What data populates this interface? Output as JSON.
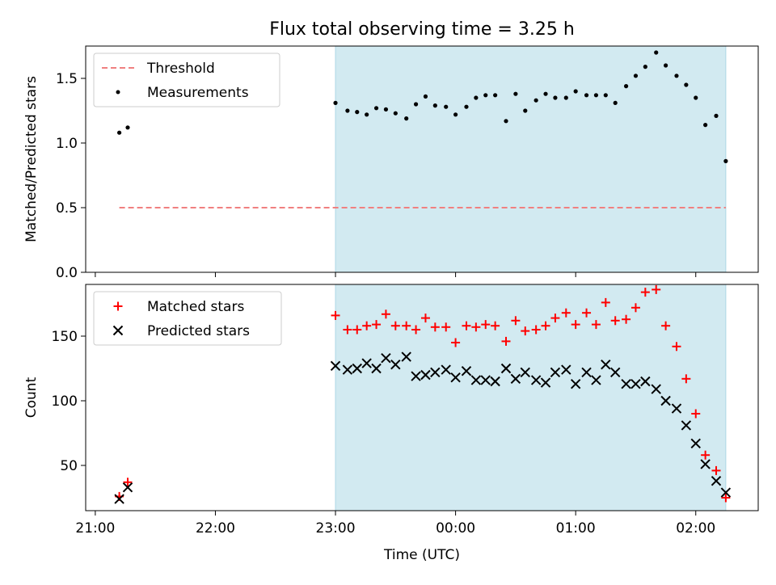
{
  "figure": {
    "title": "Flux total observing time = 3.25 h",
    "xlabel": "Time (UTC)",
    "x_tick_labels": [
      "21:00",
      "22:00",
      "23:00",
      "00:00",
      "01:00",
      "02:00"
    ]
  },
  "colors": {
    "threshold": "#f08080",
    "measurements": "#000000",
    "matched": "#ff0000",
    "predicted": "#000000",
    "shade": "#add8e6"
  },
  "chart_data": [
    {
      "type": "scatter",
      "ylabel": "Matched/Predicted stars",
      "ylim": [
        0,
        1.75
      ],
      "xlim_hours": [
        -0.08,
        5.52
      ],
      "y_tick_labels": [
        "0.0",
        "0.5",
        "1.0",
        "1.5"
      ],
      "y_ticks": [
        0,
        0.5,
        1.0,
        1.5
      ],
      "x_ticks_hours": [
        0,
        1,
        2,
        3,
        4,
        5
      ],
      "legend_position": "upper-left",
      "shaded_span_hours": [
        2.0,
        5.25
      ],
      "threshold": {
        "name": "Threshold",
        "value": 0.5,
        "x_range_hours": [
          0.2,
          5.25
        ]
      },
      "series": [
        {
          "name": "Measurements",
          "x_hours": [
            0.2,
            0.27,
            2.0,
            2.1,
            2.18,
            2.26,
            2.34,
            2.42,
            2.5,
            2.59,
            2.67,
            2.75,
            2.83,
            2.92,
            3.0,
            3.09,
            3.17,
            3.25,
            3.33,
            3.42,
            3.5,
            3.58,
            3.67,
            3.75,
            3.83,
            3.92,
            4.0,
            4.09,
            4.17,
            4.25,
            4.33,
            4.42,
            4.5,
            4.58,
            4.67,
            4.75,
            4.84,
            4.92,
            5.0,
            5.08,
            5.17,
            5.25
          ],
          "y": [
            1.08,
            1.12,
            1.31,
            1.25,
            1.24,
            1.22,
            1.27,
            1.26,
            1.23,
            1.19,
            1.3,
            1.36,
            1.29,
            1.28,
            1.22,
            1.28,
            1.35,
            1.37,
            1.37,
            1.17,
            1.38,
            1.25,
            1.33,
            1.38,
            1.35,
            1.35,
            1.4,
            1.37,
            1.37,
            1.37,
            1.31,
            1.44,
            1.52,
            1.59,
            1.7,
            1.6,
            1.52,
            1.45,
            1.35,
            1.14,
            1.21,
            0.86
          ]
        }
      ]
    },
    {
      "type": "scatter",
      "ylabel": "Count",
      "ylim": [
        15,
        190
      ],
      "xlim_hours": [
        -0.08,
        5.52
      ],
      "y_tick_labels": [
        "50",
        "100",
        "150"
      ],
      "y_ticks": [
        50,
        100,
        150
      ],
      "x_ticks_hours": [
        0,
        1,
        2,
        3,
        4,
        5
      ],
      "legend_position": "upper-left",
      "shaded_span_hours": [
        2.0,
        5.25
      ],
      "series": [
        {
          "name": "Matched stars",
          "marker": "plus",
          "x_hours": [
            0.2,
            0.27,
            2.0,
            2.1,
            2.18,
            2.26,
            2.34,
            2.42,
            2.5,
            2.59,
            2.67,
            2.75,
            2.83,
            2.92,
            3.0,
            3.09,
            3.17,
            3.25,
            3.33,
            3.42,
            3.5,
            3.58,
            3.67,
            3.75,
            3.83,
            3.92,
            4.0,
            4.09,
            4.17,
            4.25,
            4.33,
            4.42,
            4.5,
            4.58,
            4.67,
            4.75,
            4.84,
            4.92,
            5.0,
            5.08,
            5.17,
            5.25
          ],
          "y": [
            26,
            37,
            166,
            155,
            155,
            158,
            159,
            167,
            158,
            158,
            155,
            164,
            157,
            157,
            145,
            158,
            157,
            159,
            158,
            146,
            162,
            154,
            155,
            158,
            164,
            168,
            159,
            168,
            159,
            176,
            162,
            163,
            172,
            184,
            186,
            158,
            142,
            117,
            90,
            58,
            46,
            25
          ]
        },
        {
          "name": "Predicted stars",
          "marker": "x",
          "x_hours": [
            0.2,
            0.27,
            2.0,
            2.1,
            2.18,
            2.26,
            2.34,
            2.42,
            2.5,
            2.59,
            2.67,
            2.75,
            2.83,
            2.92,
            3.0,
            3.09,
            3.17,
            3.25,
            3.33,
            3.42,
            3.5,
            3.58,
            3.67,
            3.75,
            3.83,
            3.92,
            4.0,
            4.09,
            4.17,
            4.25,
            4.33,
            4.42,
            4.5,
            4.58,
            4.67,
            4.75,
            4.84,
            4.92,
            5.0,
            5.08,
            5.17,
            5.25
          ],
          "y": [
            24,
            33,
            127,
            124,
            125,
            129,
            125,
            133,
            128,
            134,
            119,
            120,
            122,
            124,
            118,
            123,
            116,
            116,
            115,
            125,
            117,
            122,
            116,
            114,
            122,
            124,
            113,
            122,
            116,
            128,
            122,
            113,
            113,
            115,
            109,
            100,
            94,
            81,
            67,
            51,
            38,
            29
          ]
        }
      ]
    }
  ]
}
